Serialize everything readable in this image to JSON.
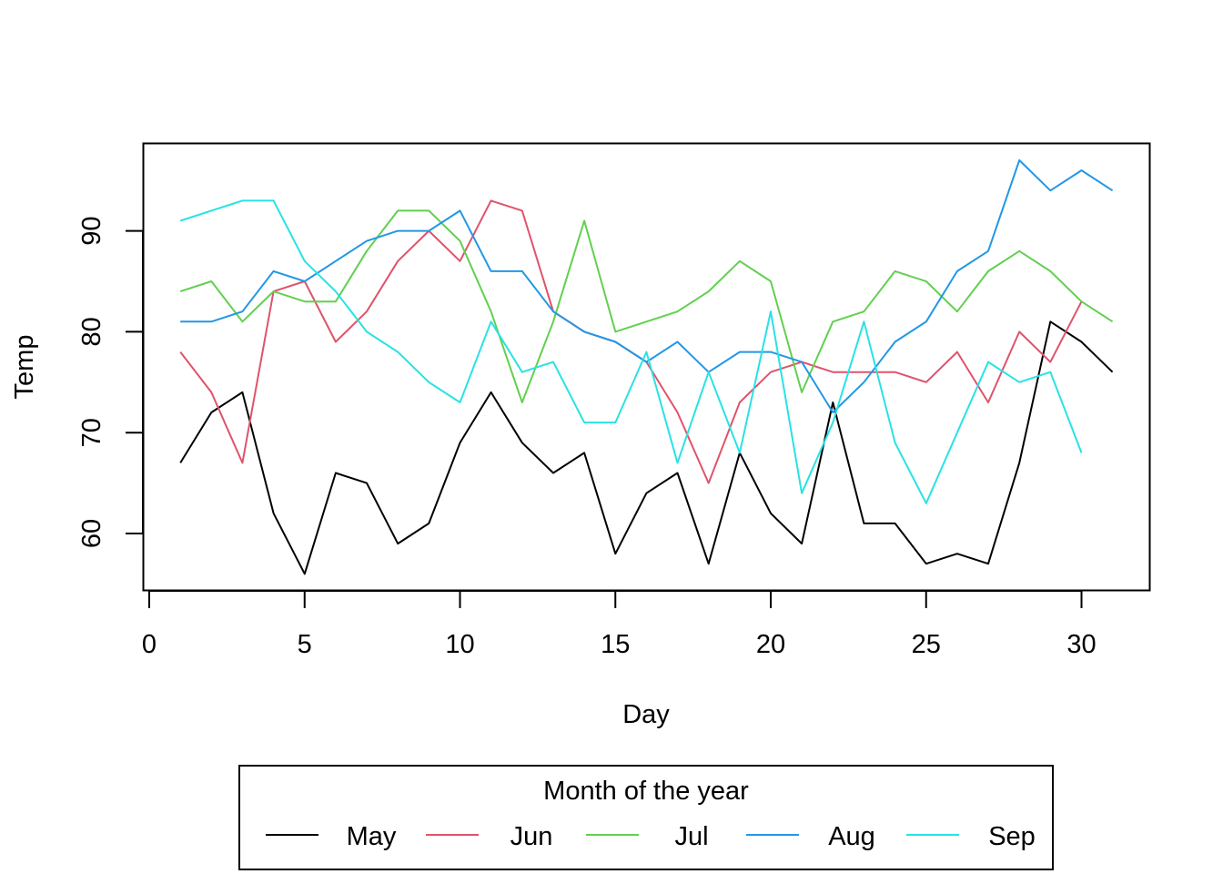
{
  "chart_data": {
    "type": "line",
    "title": "",
    "xlabel": "Day",
    "ylabel": "Temp",
    "xlim": [
      0,
      32
    ],
    "ylim": [
      55,
      97
    ],
    "x_ticks": [
      "0",
      "5",
      "10",
      "15",
      "20",
      "25",
      "30"
    ],
    "y_ticks": [
      "60",
      "70",
      "80",
      "90"
    ],
    "grid": false,
    "legend": {
      "title": "Month of the year",
      "position": "bottom",
      "entries": [
        "May",
        "Jun",
        "Jul",
        "Aug",
        "Sep"
      ]
    },
    "series": [
      {
        "name": "May",
        "color": "#000000",
        "x": [
          1,
          2,
          3,
          4,
          5,
          6,
          7,
          8,
          9,
          10,
          11,
          12,
          13,
          14,
          15,
          16,
          17,
          18,
          19,
          20,
          21,
          22,
          23,
          24,
          25,
          26,
          27,
          28,
          29,
          30,
          31
        ],
        "values": [
          67,
          72,
          74,
          62,
          56,
          66,
          65,
          59,
          61,
          69,
          74,
          69,
          66,
          68,
          58,
          64,
          66,
          57,
          68,
          62,
          59,
          73,
          61,
          61,
          57,
          58,
          57,
          67,
          81,
          79,
          76
        ]
      },
      {
        "name": "Jun",
        "color": "#DF536B",
        "x": [
          1,
          2,
          3,
          4,
          5,
          6,
          7,
          8,
          9,
          10,
          11,
          12,
          13,
          14,
          15,
          16,
          17,
          18,
          19,
          20,
          21,
          22,
          23,
          24,
          25,
          26,
          27,
          28,
          29,
          30
        ],
        "values": [
          78,
          74,
          67,
          84,
          85,
          79,
          82,
          87,
          90,
          87,
          93,
          92,
          82,
          80,
          79,
          77,
          72,
          65,
          73,
          76,
          77,
          76,
          76,
          76,
          75,
          78,
          73,
          80,
          77,
          83
        ]
      },
      {
        "name": "Jul",
        "color": "#61D04F",
        "x": [
          1,
          2,
          3,
          4,
          5,
          6,
          7,
          8,
          9,
          10,
          11,
          12,
          13,
          14,
          15,
          16,
          17,
          18,
          19,
          20,
          21,
          22,
          23,
          24,
          25,
          26,
          27,
          28,
          29,
          30,
          31
        ],
        "values": [
          84,
          85,
          81,
          84,
          83,
          83,
          88,
          92,
          92,
          89,
          82,
          73,
          81,
          91,
          80,
          81,
          82,
          84,
          87,
          85,
          74,
          81,
          82,
          86,
          85,
          82,
          86,
          88,
          86,
          83,
          81
        ]
      },
      {
        "name": "Aug",
        "color": "#2297E6",
        "x": [
          1,
          2,
          3,
          4,
          5,
          6,
          7,
          8,
          9,
          10,
          11,
          12,
          13,
          14,
          15,
          16,
          17,
          18,
          19,
          20,
          21,
          22,
          23,
          24,
          25,
          26,
          27,
          28,
          29,
          30,
          31
        ],
        "values": [
          81,
          81,
          82,
          86,
          85,
          87,
          89,
          90,
          90,
          92,
          86,
          86,
          82,
          80,
          79,
          77,
          79,
          76,
          78,
          78,
          77,
          72,
          75,
          79,
          81,
          86,
          88,
          97,
          94,
          96,
          94
        ]
      },
      {
        "name": "Sep",
        "color": "#28E2E5",
        "x": [
          1,
          2,
          3,
          4,
          5,
          6,
          7,
          8,
          9,
          10,
          11,
          12,
          13,
          14,
          15,
          16,
          17,
          18,
          19,
          20,
          21,
          22,
          23,
          24,
          25,
          26,
          27,
          28,
          29,
          30
        ],
        "values": [
          91,
          92,
          93,
          93,
          87,
          84,
          80,
          78,
          75,
          73,
          81,
          76,
          77,
          71,
          71,
          78,
          67,
          76,
          68,
          82,
          64,
          71,
          81,
          69,
          63,
          70,
          77,
          75,
          76,
          68
        ]
      }
    ]
  }
}
